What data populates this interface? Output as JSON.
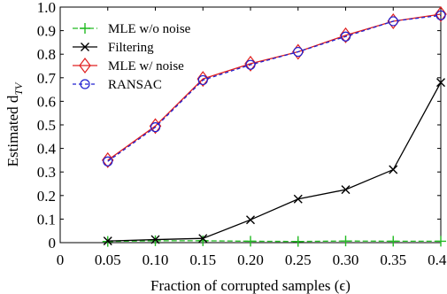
{
  "chart_data": {
    "type": "line",
    "title": "",
    "xlabel": "Fraction of corrupted samples (ϵ)",
    "ylabel_main": "Estimated d",
    "ylabel_sub": "TV",
    "xlim": [
      0,
      0.4
    ],
    "ylim": [
      0,
      1.0
    ],
    "x_ticks": [
      "0",
      "0.05",
      "0.10",
      "0.15",
      "0.20",
      "0.25",
      "0.30",
      "0.35",
      "0.40"
    ],
    "y_ticks": [
      "0",
      "0.1",
      "0.2",
      "0.3",
      "0.4",
      "0.5",
      "0.6",
      "0.7",
      "0.8",
      "0.9",
      "1.0"
    ],
    "legend_position": "top-left",
    "x": [
      0.05,
      0.1,
      0.15,
      0.2,
      0.25,
      0.3,
      0.35,
      0.4
    ],
    "series": [
      {
        "name": "MLE w/o noise",
        "color": "#22bb22",
        "marker": "plus",
        "dash": "6,3",
        "values": [
          0.005,
          0.008,
          0.008,
          0.006,
          0.005,
          0.007,
          0.006,
          0.006
        ]
      },
      {
        "name": "Filtering",
        "color": "#000000",
        "marker": "x",
        "dash": "",
        "values": [
          0.007,
          0.013,
          0.018,
          0.097,
          0.185,
          0.225,
          0.31,
          0.68
        ]
      },
      {
        "name": "MLE w/ noise",
        "color": "#e02020",
        "marker": "diamond",
        "dash": "",
        "values": [
          0.35,
          0.495,
          0.695,
          0.76,
          0.81,
          0.88,
          0.94,
          0.97
        ]
      },
      {
        "name": "RANSAC",
        "color": "#2020d0",
        "marker": "circle",
        "dash": "4,3",
        "values": [
          0.345,
          0.49,
          0.69,
          0.755,
          0.81,
          0.875,
          0.94,
          0.965
        ]
      }
    ]
  }
}
